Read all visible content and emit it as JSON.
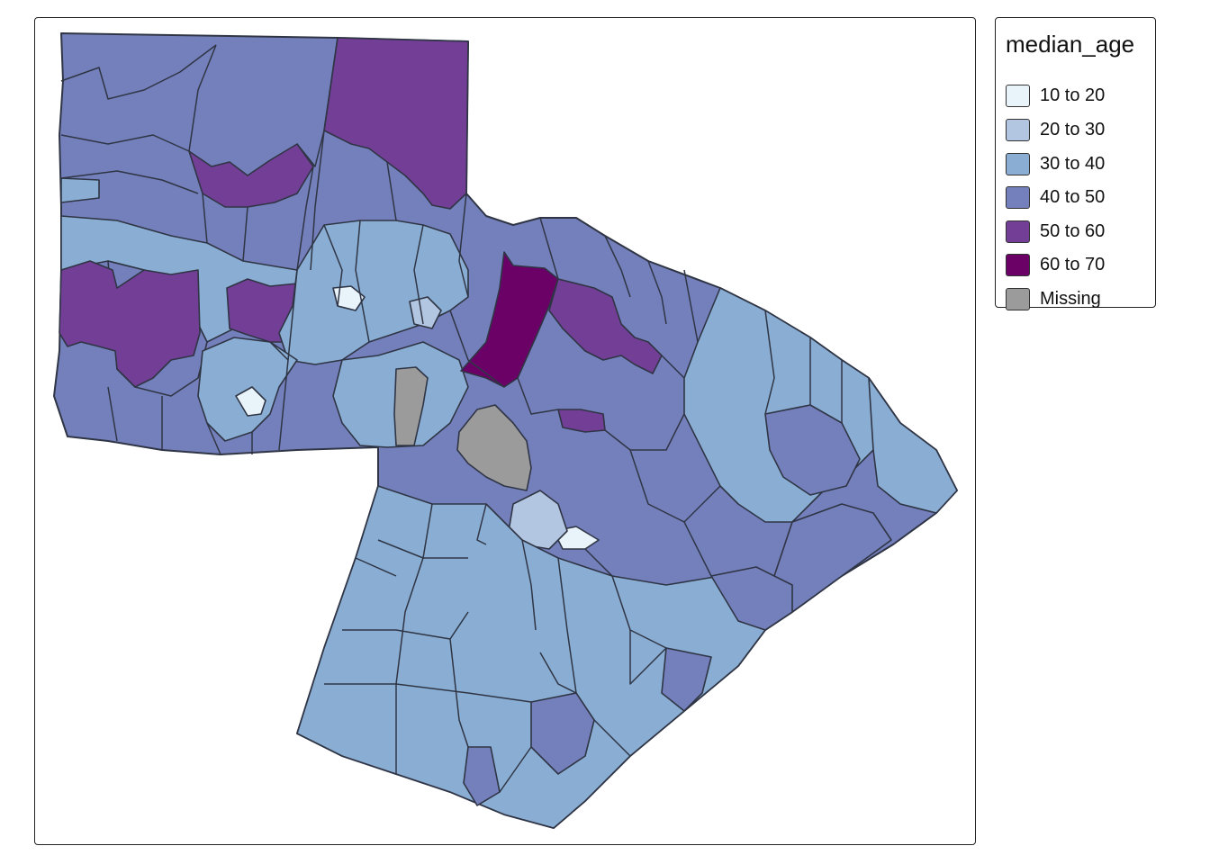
{
  "map": {
    "variable": "median_age",
    "classes": [
      {
        "label": "10 to 20",
        "color": "#e9f4fa"
      },
      {
        "label": "20 to 30",
        "color": "#b3c6e1"
      },
      {
        "label": "30 to 40",
        "color": "#8aaed3"
      },
      {
        "label": "40 to 50",
        "color": "#7480bb"
      },
      {
        "label": "50 to 60",
        "color": "#733e96"
      },
      {
        "label": "60 to 70",
        "color": "#6b0067"
      },
      {
        "label": "Missing",
        "color": "#9b9b9b"
      }
    ],
    "border_color": "#2f3545",
    "frame_color": "#222222"
  },
  "legend": {
    "title": "median_age",
    "labels": [
      "10 to 20",
      "20 to 30",
      "30 to 40",
      "40 to 50",
      "50 to 60",
      "60 to 70",
      "Missing"
    ]
  }
}
